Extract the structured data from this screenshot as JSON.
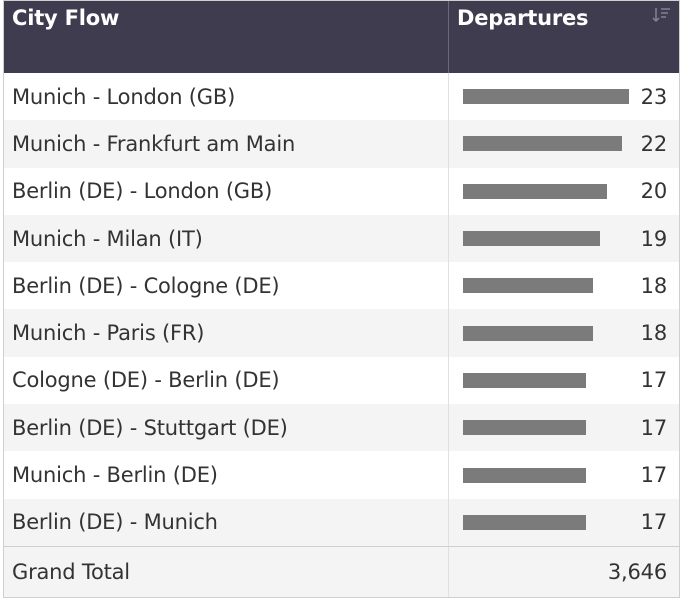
{
  "header": {
    "col1": "City Flow",
    "col2": "Departures",
    "sort_icon": "sort-descending-icon"
  },
  "rows": [
    {
      "label": "Munich - London (GB)",
      "value": 23,
      "display": "23"
    },
    {
      "label": "Munich - Frankfurt am Main",
      "value": 22,
      "display": "22"
    },
    {
      "label": "Berlin (DE) - London (GB)",
      "value": 20,
      "display": "20"
    },
    {
      "label": "Munich - Milan (IT)",
      "value": 19,
      "display": "19"
    },
    {
      "label": "Berlin (DE) - Cologne (DE)",
      "value": 18,
      "display": "18"
    },
    {
      "label": "Munich - Paris (FR)",
      "value": 18,
      "display": "18"
    },
    {
      "label": "Cologne (DE) - Berlin (DE)",
      "value": 17,
      "display": "17"
    },
    {
      "label": "Berlin (DE) - Stuttgart (DE)",
      "value": 17,
      "display": "17"
    },
    {
      "label": "Munich - Berlin (DE)",
      "value": 17,
      "display": "17"
    },
    {
      "label": "Berlin (DE) - Munich",
      "value": 17,
      "display": "17"
    }
  ],
  "total": {
    "label": "Grand Total",
    "value": "3,646"
  },
  "colors": {
    "header_bg": "#403c4f",
    "bar": "#7b7b7b",
    "stripe": "#f4f4f4"
  }
}
